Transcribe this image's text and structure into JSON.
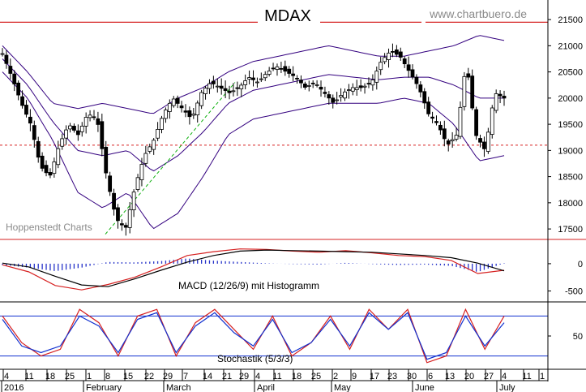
{
  "chart_data": {
    "type": "candlestick",
    "title": "MDAX",
    "watermark": "www.chartbuero.de",
    "source_label": "Hoppenstedt Charts",
    "price_axis": {
      "ylim": [
        17300,
        21750
      ],
      "ticks": [
        17500,
        18000,
        18500,
        19000,
        19500,
        20000,
        20500,
        21000,
        21500
      ],
      "tick_labels": [
        "17500",
        "18000",
        "18500",
        "19000",
        "19500",
        "20000",
        "20500",
        "21000",
        "21500"
      ]
    },
    "reference_lines": {
      "top_resistance": 21450,
      "support": 19100
    },
    "candles_start_close": 20850,
    "candles_count": 127,
    "closes_sampled": [
      20850,
      20400,
      19900,
      19500,
      18700,
      18500,
      19100,
      19500,
      19300,
      19700,
      19600,
      18500,
      17700,
      17500,
      18300,
      18900,
      19200,
      19700,
      20000,
      19800,
      19600,
      20100,
      20300,
      20200,
      20100,
      20200,
      20400,
      20300,
      20500,
      20600,
      20500,
      20400,
      20200,
      20300,
      20100,
      19900,
      20100,
      20200,
      20200,
      20300,
      20700,
      20900,
      20800,
      20500,
      20200,
      19700,
      19500,
      19100,
      19300,
      20700,
      19300,
      19000,
      20100,
      20000
    ],
    "bollinger": {
      "upper": [
        21000,
        20500,
        19900,
        19800,
        19900,
        19800,
        19700,
        20000,
        20200,
        20500,
        20700,
        20800,
        20900,
        21000,
        20900,
        20800,
        20800,
        20900,
        21000,
        21200,
        21100
      ],
      "lower": [
        20500,
        20000,
        19200,
        18200,
        17900,
        18200,
        17500,
        17800,
        18500,
        19300,
        19600,
        19700,
        19800,
        19900,
        19900,
        19900,
        20000,
        19900,
        19500,
        18800,
        18900
      ]
    },
    "macd_panel": {
      "label": "MACD (12/26/9) mit Histogramm",
      "tick_labels": [
        "0",
        "-500"
      ],
      "macd": [
        -20,
        -150,
        -400,
        -480,
        -380,
        -250,
        -60,
        150,
        220,
        270,
        260,
        230,
        210,
        240,
        200,
        150,
        130,
        60,
        -180,
        -120
      ],
      "signal": [
        10,
        -60,
        -230,
        -390,
        -420,
        -280,
        -120,
        30,
        150,
        230,
        250,
        240,
        230,
        220,
        210,
        180,
        150,
        110,
        10,
        -130
      ]
    },
    "stoch_panel": {
      "label": "Stochastik (5/3/3)",
      "tick_labels": [
        "50"
      ],
      "k": [
        80,
        40,
        20,
        30,
        90,
        70,
        20,
        80,
        90,
        20,
        70,
        90,
        60,
        30,
        80,
        20,
        40,
        80,
        30,
        90,
        60,
        90,
        10,
        20,
        90,
        30,
        80
      ],
      "d": [
        75,
        35,
        25,
        35,
        80,
        65,
        25,
        75,
        85,
        25,
        65,
        85,
        55,
        35,
        75,
        25,
        40,
        75,
        35,
        85,
        60,
        85,
        15,
        25,
        80,
        35,
        70
      ]
    },
    "x_axis": {
      "day_ticks": [
        "4",
        "11",
        "18",
        "25",
        "1",
        "8",
        "15",
        "22",
        "29",
        "7",
        "14",
        "21",
        "29",
        "4",
        "11",
        "18",
        "25",
        "2",
        "9",
        "17",
        "23",
        "30",
        "6",
        "13",
        "20",
        "27",
        "4",
        "11",
        "1"
      ],
      "months": [
        "2016",
        "February",
        "March",
        "April",
        "May",
        "June",
        "July"
      ]
    },
    "colors": {
      "band": "#33007f",
      "bear_candle": "#000000",
      "bull_candle": "#ffffff",
      "red_line": "#d62020",
      "blue_line": "#1030d0",
      "trend_line": "#10b010",
      "macd_histogram": "#2633c9"
    }
  }
}
